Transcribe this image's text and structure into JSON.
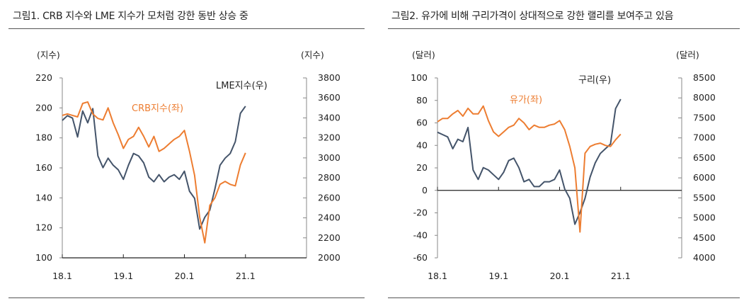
{
  "charts_titles": {
    "left": "그림1.   CRB 지수와 LME 지수가 모처럼 강한 동반 상승 중",
    "right": "그림2. 유가에 비해 구리가격이 상대적으로 강한 랠리를 보여주고 있음"
  },
  "colors": {
    "orange": "#ED7D31",
    "navy": "#44546A"
  },
  "chart_data": [
    {
      "type": "line",
      "title": "그림1.   CRB 지수와 LME 지수가 모처럼 강한 동반 상승 중",
      "left_unit": "(지수)",
      "right_unit": "(지수)",
      "x_ticks": [
        "18.1",
        "19.1",
        "20.1",
        "21.1"
      ],
      "xlim": [
        "2018-01",
        "2022-01"
      ],
      "ylim_left": [
        100,
        220
      ],
      "yticks_left": [
        "100",
        "120",
        "140",
        "160",
        "180",
        "200",
        "220"
      ],
      "ylim_right": [
        2000,
        3800
      ],
      "yticks_right": [
        "2000",
        "2200",
        "2400",
        "2600",
        "2800",
        "3000",
        "3200",
        "3400",
        "3600",
        "3800"
      ],
      "grid": false,
      "x": [
        "2018-01",
        "2018-02",
        "2018-03",
        "2018-04",
        "2018-05",
        "2018-06",
        "2018-07",
        "2018-08",
        "2018-09",
        "2018-10",
        "2018-11",
        "2018-12",
        "2019-01",
        "2019-02",
        "2019-03",
        "2019-04",
        "2019-05",
        "2019-06",
        "2019-07",
        "2019-08",
        "2019-09",
        "2019-10",
        "2019-11",
        "2019-12",
        "2020-01",
        "2020-02",
        "2020-03",
        "2020-04",
        "2020-05",
        "2020-06",
        "2020-07",
        "2020-08",
        "2020-09",
        "2020-10",
        "2020-11",
        "2020-12",
        "2021-01"
      ],
      "series": [
        {
          "name": "CRB지수(좌)",
          "axis": "left",
          "color": "#ED7D31",
          "values": [
            195,
            196,
            195,
            194,
            203,
            204,
            196,
            193,
            192,
            200,
            190,
            182,
            173,
            179,
            181,
            187,
            181,
            174,
            181,
            171,
            173,
            176,
            179,
            181,
            185,
            171,
            155,
            127,
            110,
            135,
            140,
            149,
            151,
            149,
            148,
            162,
            170
          ]
        },
        {
          "name": "LME지수(우)",
          "axis": "right",
          "color": "#44546A",
          "values": [
            3375,
            3422,
            3398,
            3209,
            3469,
            3351,
            3493,
            3020,
            2902,
            2997,
            2926,
            2880,
            2785,
            2926,
            3044,
            3020,
            2950,
            2808,
            2761,
            2832,
            2761,
            2808,
            2832,
            2785,
            2867,
            2666,
            2595,
            2288,
            2406,
            2477,
            2690,
            2926,
            2997,
            3044,
            3162,
            3446,
            3517
          ]
        }
      ]
    },
    {
      "type": "line",
      "title": "그림2. 유가에 비해 구리가격이 상대적으로 강한 랠리를 보여주고 있음",
      "left_unit": "(달러)",
      "right_unit": "(달러)",
      "x_ticks": [
        "18.1",
        "19.1",
        "20.1",
        "21.1"
      ],
      "xlim": [
        "2018-01",
        "2022-01"
      ],
      "ylim_left": [
        -60,
        100
      ],
      "yticks_left": [
        "-60",
        "-40",
        "-20",
        "0",
        "20",
        "40",
        "60",
        "80",
        "100"
      ],
      "ylim_right": [
        4000,
        8500
      ],
      "yticks_right": [
        "4000",
        "4500",
        "5000",
        "5500",
        "6000",
        "6500",
        "7000",
        "7500",
        "8000",
        "8500"
      ],
      "grid": false,
      "x": [
        "2018-01",
        "2018-02",
        "2018-03",
        "2018-04",
        "2018-05",
        "2018-06",
        "2018-07",
        "2018-08",
        "2018-09",
        "2018-10",
        "2018-11",
        "2018-12",
        "2019-01",
        "2019-02",
        "2019-03",
        "2019-04",
        "2019-05",
        "2019-06",
        "2019-07",
        "2019-08",
        "2019-09",
        "2019-10",
        "2019-11",
        "2019-12",
        "2020-01",
        "2020-02",
        "2020-03",
        "2020-04",
        "2020-05",
        "2020-06",
        "2020-07",
        "2020-08",
        "2020-09",
        "2020-10",
        "2020-11",
        "2020-12",
        "2021-01"
      ],
      "series": [
        {
          "name": "유가(좌)",
          "axis": "left",
          "color": "#ED7D31",
          "values": [
            61,
            64,
            64,
            68,
            71,
            66,
            73,
            68,
            68,
            75,
            62,
            52,
            48,
            52,
            56,
            58,
            64,
            60,
            54,
            58,
            56,
            56,
            58,
            59,
            62,
            54,
            39,
            20,
            -37,
            33,
            39,
            41,
            42,
            40,
            39,
            45,
            50
          ]
        },
        {
          "name": "구리(우)",
          "axis": "right",
          "color": "#44546A",
          "values": [
            7142,
            7083,
            7024,
            6728,
            6965,
            6905,
            7260,
            6197,
            5961,
            6256,
            6197,
            6079,
            5961,
            6138,
            6433,
            6492,
            6256,
            5902,
            5961,
            5783,
            5783,
            5902,
            5902,
            5961,
            6197,
            5724,
            5488,
            4839,
            5134,
            5488,
            6020,
            6374,
            6610,
            6728,
            6846,
            7732,
            7968
          ]
        }
      ]
    }
  ]
}
